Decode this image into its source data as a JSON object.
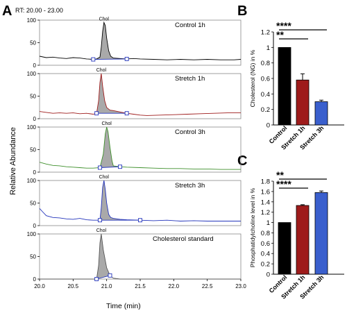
{
  "panel_letters": {
    "a": "A",
    "b": "B",
    "c": "C"
  },
  "rt_label": "RT: 20.00 - 23.00",
  "chart_data": [
    {
      "id": "A",
      "type": "line",
      "ylabel": "Relative Abundance",
      "xlabel": "Time (min)",
      "x_ticks": [
        "20.0",
        "20.5",
        "21.0",
        "21.5",
        "22.0",
        "22.5",
        "23.0"
      ],
      "xlim": [
        20.0,
        23.0
      ],
      "y_ticks": [
        "0",
        "50",
        "100"
      ],
      "ylim": [
        0,
        100
      ],
      "peak_label": "Chol",
      "series": [
        {
          "name": "Control 1h",
          "color": "#000000",
          "x": [
            20.0,
            20.1,
            20.2,
            20.3,
            20.4,
            20.5,
            20.6,
            20.7,
            20.8,
            20.85,
            20.9,
            20.92,
            20.94,
            20.96,
            20.98,
            21.0,
            21.03,
            21.06,
            21.1,
            21.2,
            21.3,
            21.4,
            21.5,
            21.7,
            21.9,
            22.1,
            22.3,
            22.5,
            22.7,
            22.9,
            23.0
          ],
          "y": [
            20,
            17,
            18,
            16,
            15,
            17,
            16,
            14,
            13,
            14,
            18,
            40,
            75,
            95,
            88,
            60,
            32,
            20,
            16,
            15,
            14,
            15,
            14,
            13,
            12,
            13,
            12,
            13,
            12,
            12,
            13
          ]
        },
        {
          "name": "Stretch 1h",
          "color": "#9e1b1b",
          "x": [
            20.0,
            20.1,
            20.2,
            20.3,
            20.4,
            20.5,
            20.6,
            20.7,
            20.8,
            20.85,
            20.88,
            20.9,
            20.92,
            20.94,
            20.97,
            21.0,
            21.05,
            21.1,
            21.2,
            21.3,
            21.4,
            21.5,
            21.6,
            21.8,
            22.0,
            22.2,
            22.4,
            22.6,
            22.8,
            23.0
          ],
          "y": [
            16,
            14,
            12,
            13,
            12,
            13,
            11,
            12,
            10,
            12,
            40,
            80,
            100,
            72,
            40,
            25,
            19,
            18,
            15,
            12,
            10,
            8,
            7,
            8,
            9,
            10,
            11,
            12,
            13,
            13
          ]
        },
        {
          "name": "Control 3h",
          "color": "#3d8f2a",
          "x": [
            20.0,
            20.1,
            20.2,
            20.3,
            20.4,
            20.5,
            20.6,
            20.7,
            20.8,
            20.9,
            20.95,
            20.98,
            21.0,
            21.02,
            21.05,
            21.08,
            21.1,
            21.2,
            21.3,
            21.5,
            21.7,
            21.9,
            22.1,
            22.3,
            22.5,
            22.7,
            23.0
          ],
          "y": [
            22,
            18,
            15,
            14,
            12,
            11,
            10,
            9,
            9,
            10,
            40,
            85,
            100,
            90,
            55,
            25,
            14,
            12,
            11,
            10,
            9,
            8,
            8,
            7,
            7,
            6,
            6
          ]
        },
        {
          "name": "Stretch 3h",
          "color": "#2233bb",
          "x": [
            20.0,
            20.05,
            20.1,
            20.2,
            20.3,
            20.4,
            20.5,
            20.6,
            20.7,
            20.8,
            20.9,
            20.92,
            20.94,
            20.96,
            20.98,
            21.0,
            21.03,
            21.06,
            21.1,
            21.2,
            21.3,
            21.5,
            21.7,
            21.9,
            22.1,
            22.3,
            22.5,
            22.7,
            23.0
          ],
          "y": [
            38,
            30,
            22,
            18,
            17,
            15,
            14,
            16,
            13,
            12,
            12,
            40,
            85,
            100,
            80,
            50,
            25,
            18,
            16,
            14,
            13,
            12,
            11,
            12,
            10,
            11,
            10,
            10,
            10
          ]
        },
        {
          "name": "Cholesterol standard",
          "color": "#555555",
          "x": [
            20.0,
            20.3,
            20.6,
            20.8,
            20.85,
            20.88,
            20.9,
            20.92,
            20.95,
            21.0,
            21.05,
            21.1,
            21.2,
            21.4,
            21.6,
            22.0,
            22.5,
            23.0
          ],
          "y": [
            0,
            0,
            0,
            0,
            0,
            30,
            80,
            100,
            65,
            25,
            8,
            2,
            0,
            0,
            0,
            0,
            0,
            0
          ]
        }
      ]
    },
    {
      "id": "B",
      "type": "bar",
      "ylabel": "Cholesterol (NG) in %",
      "categories": [
        "Control",
        "Stretch 1h",
        "Stretch 3h"
      ],
      "values": [
        1.0,
        0.58,
        0.3
      ],
      "errors": [
        0,
        0.08,
        0.02
      ],
      "colors": [
        "#000000",
        "#9e1b1b",
        "#3a5fcd"
      ],
      "ylim": [
        0,
        1.2
      ],
      "y_ticks": [
        "0",
        "0.2",
        "0.4",
        "0.6",
        "0.8",
        "1",
        "1.2"
      ],
      "significance": [
        {
          "label": "****",
          "from": "Control",
          "to": "Stretch 3h"
        },
        {
          "label": "**",
          "from": "Control",
          "to": "Stretch 1h"
        }
      ]
    },
    {
      "id": "C",
      "type": "bar",
      "ylabel": "Phosphatidylcholine level in %",
      "categories": [
        "Control",
        "Stretch 1h",
        "Stretch 3h"
      ],
      "values": [
        1.0,
        1.33,
        1.58
      ],
      "errors": [
        0,
        0.015,
        0.03
      ],
      "colors": [
        "#000000",
        "#9e1b1b",
        "#3a5fcd"
      ],
      "ylim": [
        0,
        1.8
      ],
      "y_ticks": [
        "0",
        "0.2",
        "0.4",
        "0.6",
        "0.8",
        "1",
        "1.2",
        "1.4",
        "1.6",
        "1.8"
      ],
      "significance": [
        {
          "label": "**",
          "from": "Control",
          "to": "Stretch 3h"
        },
        {
          "label": "****",
          "from": "Control",
          "to": "Stretch 1h"
        }
      ]
    }
  ]
}
